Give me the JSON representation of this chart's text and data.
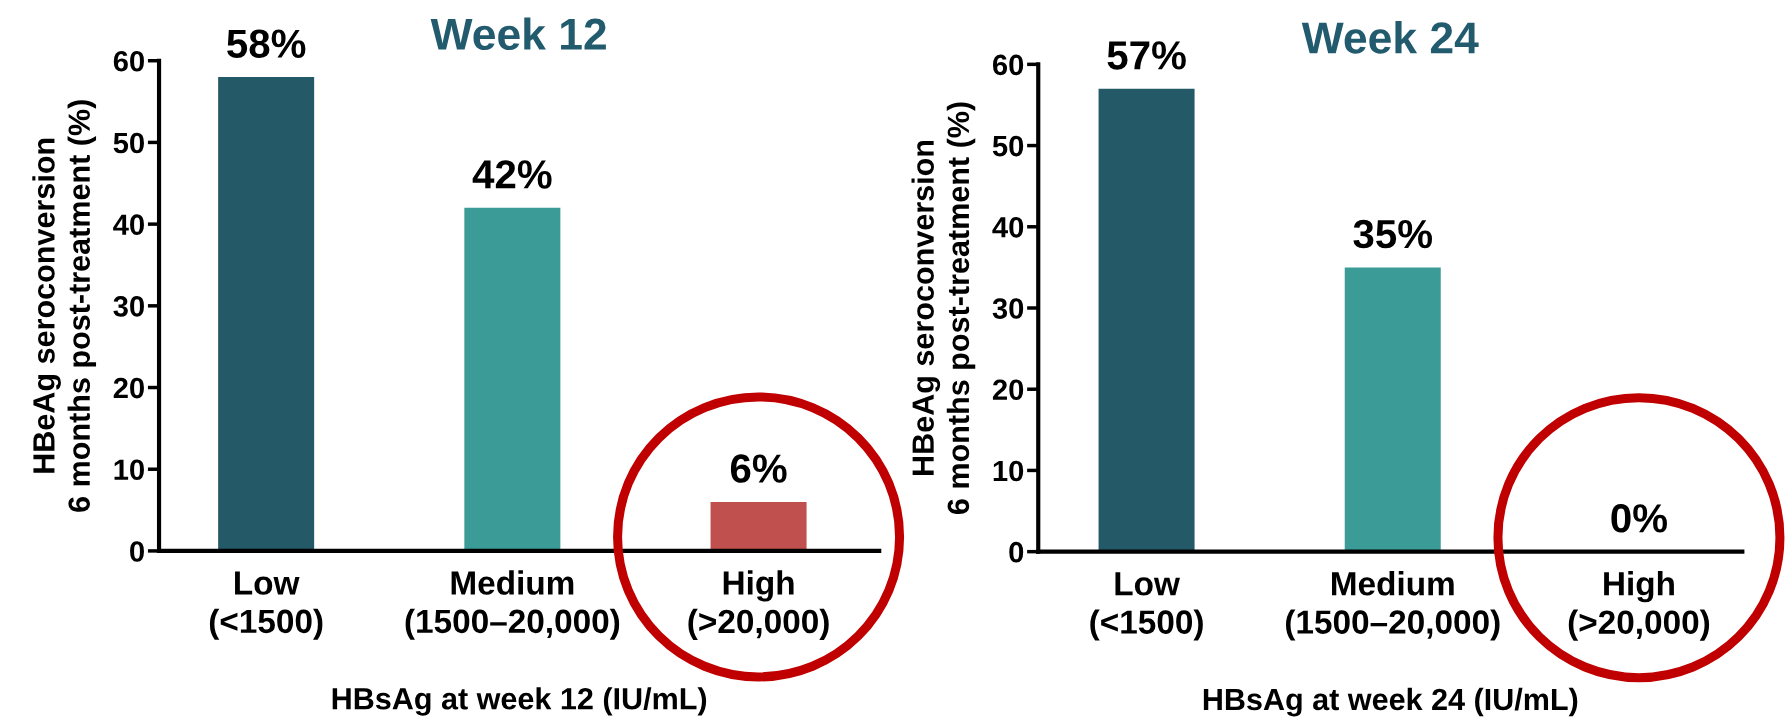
{
  "chart_data": [
    {
      "type": "bar",
      "title": "Week 12",
      "xlabel": "HBsAg at week 12 (IU/mL)",
      "ylabel": "HBeAg seroconversion\n6 months post-treatment (%)",
      "categories": [
        "Low\n(<1500)",
        "Medium\n(1500–20,000)",
        "High\n(>20,000)"
      ],
      "values": [
        58,
        42,
        6
      ],
      "colors": [
        "#245a68",
        "#3b9c97",
        "#c0504d"
      ],
      "value_labels": [
        "58%",
        "42%",
        "6%"
      ],
      "ylim": [
        0,
        60
      ],
      "yticks": [
        0,
        10,
        20,
        30,
        40,
        50,
        60
      ]
    },
    {
      "type": "bar",
      "title": "Week 24",
      "xlabel": "HBsAg at week 24 (IU/mL)",
      "ylabel": "HBeAg seroconversion\n6 months post-treatment (%)",
      "categories": [
        "Low\n(<1500)",
        "Medium\n(1500–20,000)",
        "High\n(>20,000)"
      ],
      "values": [
        57,
        35,
        0
      ],
      "colors": [
        "#245a68",
        "#3b9c97",
        "#c0504d"
      ],
      "value_labels": [
        "57%",
        "35%",
        "0%"
      ],
      "ylim": [
        0,
        60
      ],
      "yticks": [
        0,
        10,
        20,
        30,
        40,
        50,
        60
      ]
    }
  ]
}
